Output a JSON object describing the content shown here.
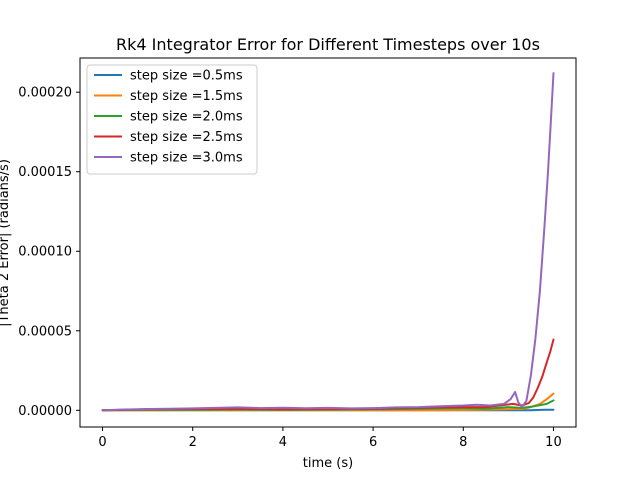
{
  "chart_data": {
    "type": "line",
    "title": "Rk4 Integrator Error for Different Timesteps over 10s",
    "xlabel": "time (s)",
    "ylabel": "|Theta 2 Error| (radians/s)",
    "xlim": [
      -0.5,
      10.5
    ],
    "ylim": [
      -1.05e-05,
      0.0002215
    ],
    "xticks": [
      0,
      2,
      4,
      6,
      8,
      10
    ],
    "xtick_labels": [
      "0",
      "2",
      "4",
      "6",
      "8",
      "10"
    ],
    "yticks": [
      0,
      5e-05,
      0.0001,
      0.00015,
      0.0002
    ],
    "ytick_labels": [
      "0.00000",
      "0.00005",
      "0.00010",
      "0.00015",
      "0.00020"
    ],
    "grid": false,
    "legend": "top-left",
    "series": [
      {
        "name": "step size =0.5ms",
        "color": "#1f77b4",
        "x": [
          0,
          1,
          2,
          3,
          4,
          5,
          6,
          7,
          8,
          8.5,
          9,
          9.5,
          9.8,
          10
        ],
        "y": [
          0,
          0,
          0,
          0,
          0,
          0,
          0,
          0,
          0,
          0,
          0,
          0,
          3e-07,
          4e-07
        ]
      },
      {
        "name": "step size =1.5ms",
        "color": "#ff7f0e",
        "x": [
          0,
          1,
          2,
          3,
          4,
          5,
          6,
          7,
          8,
          8.5,
          9,
          9.3,
          9.5,
          9.7,
          9.85,
          10
        ],
        "y": [
          0,
          0,
          0,
          0,
          0,
          0,
          0,
          0,
          2e-07,
          3e-07,
          6e-07,
          8e-07,
          2e-06,
          4e-06,
          7e-06,
          1.05e-05
        ]
      },
      {
        "name": "step size =2.0ms",
        "color": "#2ca02c",
        "x": [
          0,
          1,
          2,
          3,
          4,
          5,
          6,
          7,
          7.5,
          8,
          8.5,
          9,
          9.3,
          9.5,
          9.7,
          9.85,
          10
        ],
        "y": [
          0,
          3e-07,
          4e-07,
          5e-07,
          4e-07,
          5e-07,
          6e-07,
          1e-06,
          1.2e-06,
          1.4e-06,
          1e-06,
          2e-06,
          1.5e-06,
          2.2e-06,
          3.2e-06,
          4e-06,
          6.2e-06
        ]
      },
      {
        "name": "step size =2.5ms",
        "color": "#d62728",
        "x": [
          0,
          1,
          2,
          3,
          4,
          5,
          6,
          7,
          7.5,
          8,
          8.5,
          8.8,
          9.1,
          9.3,
          9.45,
          9.55,
          9.65,
          9.75,
          9.85,
          9.93,
          10
        ],
        "y": [
          0,
          6e-07,
          8e-07,
          9e-07,
          7e-07,
          8e-07,
          1e-06,
          1.5e-06,
          1.8e-06,
          2e-06,
          2e-06,
          3e-06,
          4e-06,
          3e-06,
          4.5e-06,
          8e-06,
          1.4e-05,
          2.1e-05,
          3e-05,
          3.7e-05,
          4.45e-05
        ]
      },
      {
        "name": "step size =3.0ms",
        "color": "#9467bd",
        "x": [
          0,
          0.5,
          1,
          1.5,
          2,
          2.5,
          3,
          3.5,
          4,
          4.5,
          5,
          5.5,
          6,
          6.5,
          7,
          7.5,
          8,
          8.3,
          8.6,
          8.9,
          9.05,
          9.15,
          9.22,
          9.3,
          9.4,
          9.5,
          9.6,
          9.7,
          9.8,
          9.88,
          9.94,
          10
        ],
        "y": [
          0,
          5e-07,
          8e-07,
          1e-06,
          1.2e-06,
          1.5e-06,
          1.8e-06,
          1.4e-06,
          1.6e-06,
          1.3e-06,
          1.5e-06,
          1.2e-06,
          1.4e-06,
          1.8e-06,
          2e-06,
          2.5e-06,
          3e-06,
          3.5e-06,
          3e-06,
          4e-06,
          7e-06,
          1.15e-05,
          5e-06,
          2e-06,
          6e-06,
          2.2e-05,
          4.5e-05,
          7.5e-05,
          0.000115,
          0.00015,
          0.00018,
          0.000212
        ]
      }
    ]
  }
}
